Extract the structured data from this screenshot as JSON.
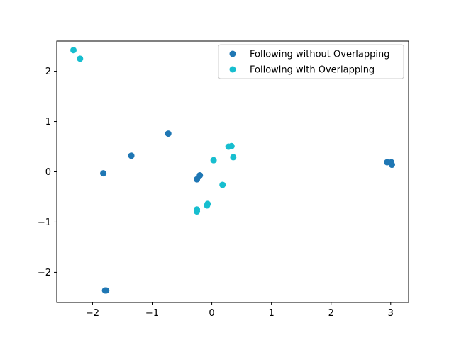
{
  "chart_data": {
    "type": "scatter",
    "title": "",
    "xlabel": "",
    "ylabel": "",
    "xlim": [
      -2.6,
      3.3
    ],
    "ylim": [
      -2.6,
      2.6
    ],
    "xticks": [
      -2,
      -1,
      0,
      1,
      2,
      3
    ],
    "yticks": [
      -2,
      -1,
      0,
      1,
      2
    ],
    "grid": false,
    "legend_position": "top-right",
    "series": [
      {
        "name": "Following without Overlapping",
        "color": "#1f77b4",
        "points": [
          {
            "x": -1.82,
            "y": -0.03
          },
          {
            "x": -1.35,
            "y": 0.32
          },
          {
            "x": -0.73,
            "y": 0.76
          },
          {
            "x": -0.25,
            "y": -0.15
          },
          {
            "x": -0.2,
            "y": -0.07
          },
          {
            "x": -1.79,
            "y": -2.36
          },
          {
            "x": -1.77,
            "y": -2.36
          },
          {
            "x": 2.94,
            "y": 0.19
          },
          {
            "x": 3.01,
            "y": 0.19
          },
          {
            "x": 3.02,
            "y": 0.14
          }
        ]
      },
      {
        "name": "Following with Overlapping",
        "color": "#17becf",
        "points": [
          {
            "x": -2.32,
            "y": 2.42
          },
          {
            "x": -2.21,
            "y": 2.25
          },
          {
            "x": 0.03,
            "y": 0.23
          },
          {
            "x": 0.28,
            "y": 0.5
          },
          {
            "x": 0.33,
            "y": 0.51
          },
          {
            "x": 0.36,
            "y": 0.29
          },
          {
            "x": 0.18,
            "y": -0.26
          },
          {
            "x": -0.07,
            "y": -0.64
          },
          {
            "x": -0.08,
            "y": -0.67
          },
          {
            "x": -0.25,
            "y": -0.75
          },
          {
            "x": -0.25,
            "y": -0.79
          }
        ]
      }
    ]
  }
}
